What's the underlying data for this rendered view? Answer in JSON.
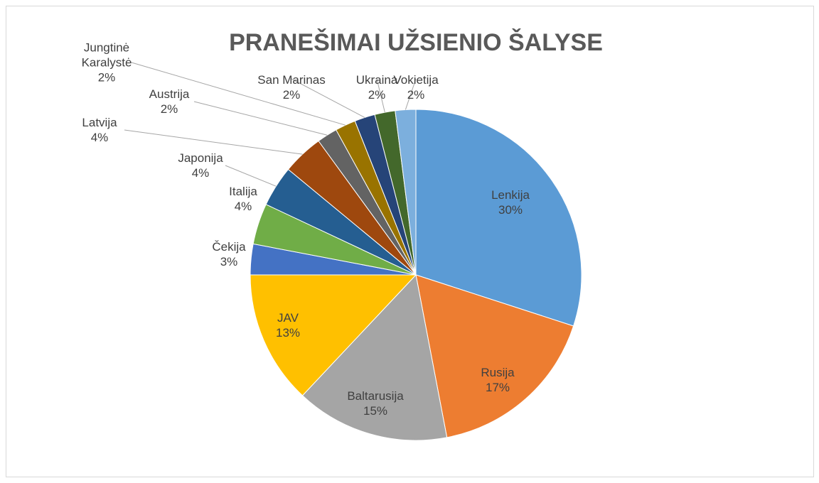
{
  "chart_data": {
    "type": "pie",
    "title": "PRANEŠIMAI UŽSIENIO ŠALYSE",
    "categories": [
      "Lenkija",
      "Rusija",
      "Baltarusija",
      "JAV",
      "Čekija",
      "Italija",
      "Japonija",
      "Latvija",
      "Austrija",
      "Jungtinė Karalystė",
      "San Marinas",
      "Ukraina",
      "Vokietija"
    ],
    "values": [
      30,
      17,
      15,
      13,
      3,
      4,
      4,
      4,
      2,
      2,
      2,
      2,
      2
    ],
    "value_labels": [
      "30%",
      "17%",
      "15%",
      "13%",
      "3%",
      "4%",
      "4%",
      "4%",
      "2%",
      "2%",
      "2%",
      "2%",
      "2%"
    ],
    "colors": [
      "#5b9bd5",
      "#ed7d31",
      "#a5a5a5",
      "#ffc000",
      "#4472c4",
      "#70ad47",
      "#255e91",
      "#9e480e",
      "#636363",
      "#997300",
      "#264478",
      "#43682b",
      "#7cafdd"
    ]
  }
}
